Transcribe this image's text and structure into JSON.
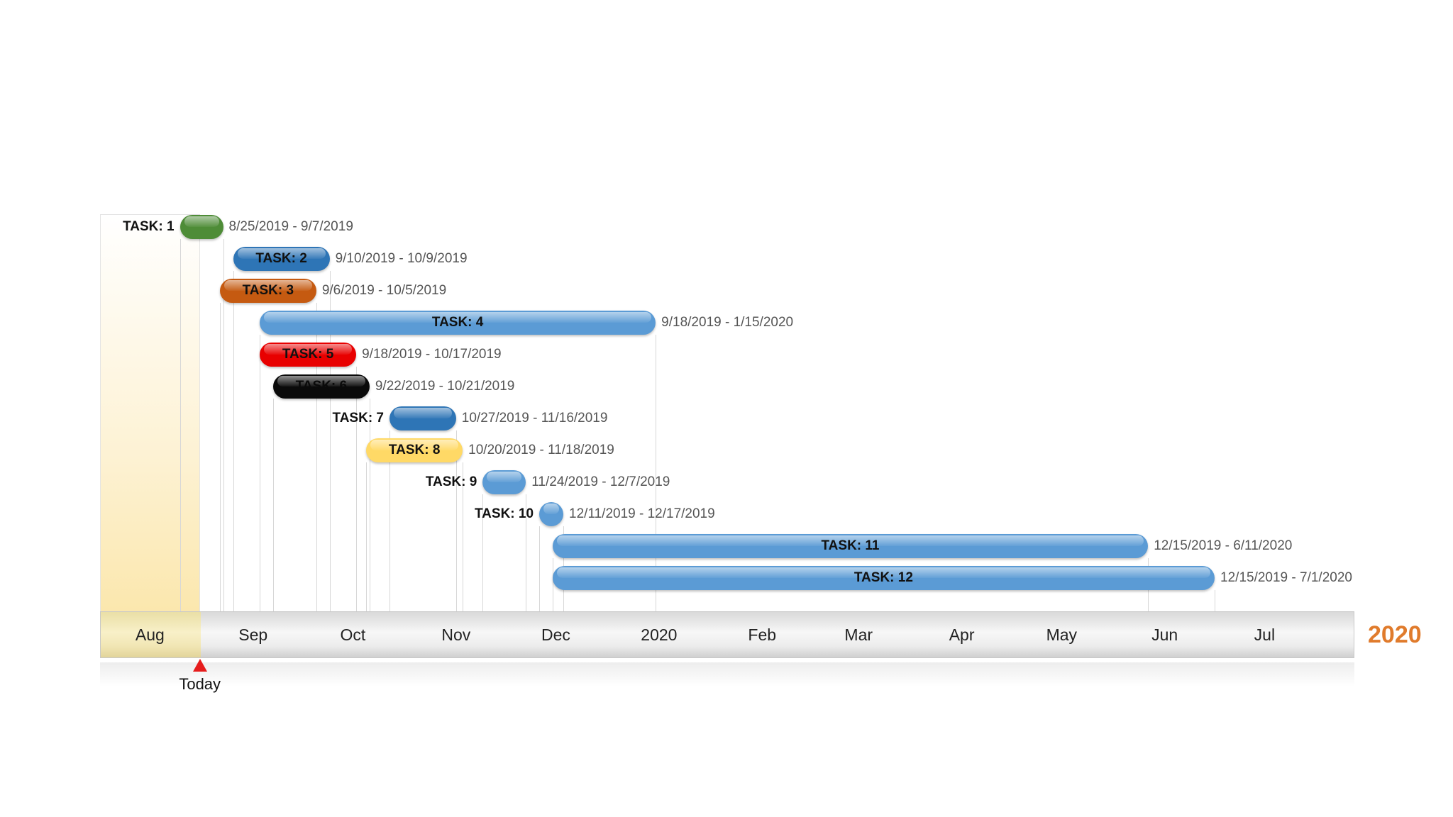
{
  "chart_data": {
    "type": "gantt",
    "year_label": "2020",
    "today": {
      "label": "Today",
      "date": "2019-08-31"
    },
    "axis_range": [
      "2019-08-01",
      "2020-08-12"
    ],
    "highlight_range": [
      "2019-08-01",
      "2019-08-31"
    ],
    "months": [
      {
        "label": "Aug",
        "date": "2019-08-01"
      },
      {
        "label": "Sep",
        "date": "2019-09-01"
      },
      {
        "label": "Oct",
        "date": "2019-10-01"
      },
      {
        "label": "Nov",
        "date": "2019-11-01"
      },
      {
        "label": "Dec",
        "date": "2019-12-01"
      },
      {
        "label": "2020",
        "date": "2020-01-01"
      },
      {
        "label": "Feb",
        "date": "2020-02-01"
      },
      {
        "label": "Mar",
        "date": "2020-03-01"
      },
      {
        "label": "Apr",
        "date": "2020-04-01"
      },
      {
        "label": "May",
        "date": "2020-05-01"
      },
      {
        "label": "Jun",
        "date": "2020-06-01"
      },
      {
        "label": "Jul",
        "date": "2020-07-01"
      }
    ],
    "tasks": [
      {
        "name": "TASK: 1",
        "start": "2019-08-25",
        "end": "2019-09-07",
        "range_text": "8/25/2019 - 9/7/2019",
        "color": "#4e8c37",
        "text_color": "#111111"
      },
      {
        "name": "TASK: 2",
        "start": "2019-09-10",
        "end": "2019-10-09",
        "range_text": "9/10/2019 - 10/9/2019",
        "color": "#2e75b6",
        "text_color": "#111111"
      },
      {
        "name": "TASK: 3",
        "start": "2019-09-06",
        "end": "2019-10-05",
        "range_text": "9/6/2019 - 10/5/2019",
        "color": "#c55a11",
        "text_color": "#111111"
      },
      {
        "name": "TASK: 4",
        "start": "2019-09-18",
        "end": "2020-01-15",
        "range_text": "9/18/2019 - 1/15/2020",
        "color": "#5b9bd5",
        "text_color": "#111111"
      },
      {
        "name": "TASK: 5",
        "start": "2019-09-18",
        "end": "2019-10-17",
        "range_text": "9/18/2019 - 10/17/2019",
        "color": "#e80000",
        "text_color": "#111111"
      },
      {
        "name": "TASK: 6",
        "start": "2019-09-22",
        "end": "2019-10-21",
        "range_text": "9/22/2019 - 10/21/2019",
        "color": "#0a0a0a",
        "text_color": "#0a0a0a"
      },
      {
        "name": "TASK: 7",
        "start": "2019-10-27",
        "end": "2019-11-16",
        "range_text": "10/27/2019 - 11/16/2019",
        "color": "#2e75b6",
        "text_color": "#111111"
      },
      {
        "name": "TASK: 8",
        "start": "2019-10-20",
        "end": "2019-11-18",
        "range_text": "10/20/2019 - 11/18/2019",
        "color": "#ffd966",
        "text_color": "#111111"
      },
      {
        "name": "TASK: 9",
        "start": "2019-11-24",
        "end": "2019-12-07",
        "range_text": "11/24/2019 - 12/7/2019",
        "color": "#5b9bd5",
        "text_color": "#111111"
      },
      {
        "name": "TASK: 10",
        "start": "2019-12-11",
        "end": "2019-12-17",
        "range_text": "12/11/2019 - 12/17/2019",
        "color": "#5b9bd5",
        "text_color": "#111111"
      },
      {
        "name": "TASK: 11",
        "start": "2019-12-15",
        "end": "2020-06-11",
        "range_text": "12/15/2019 - 6/11/2020",
        "color": "#5b9bd5",
        "text_color": "#111111"
      },
      {
        "name": "TASK: 12",
        "start": "2019-12-15",
        "end": "2020-07-01",
        "range_text": "12/15/2019 - 7/1/2020",
        "color": "#5b9bd5",
        "text_color": "#111111"
      }
    ]
  }
}
